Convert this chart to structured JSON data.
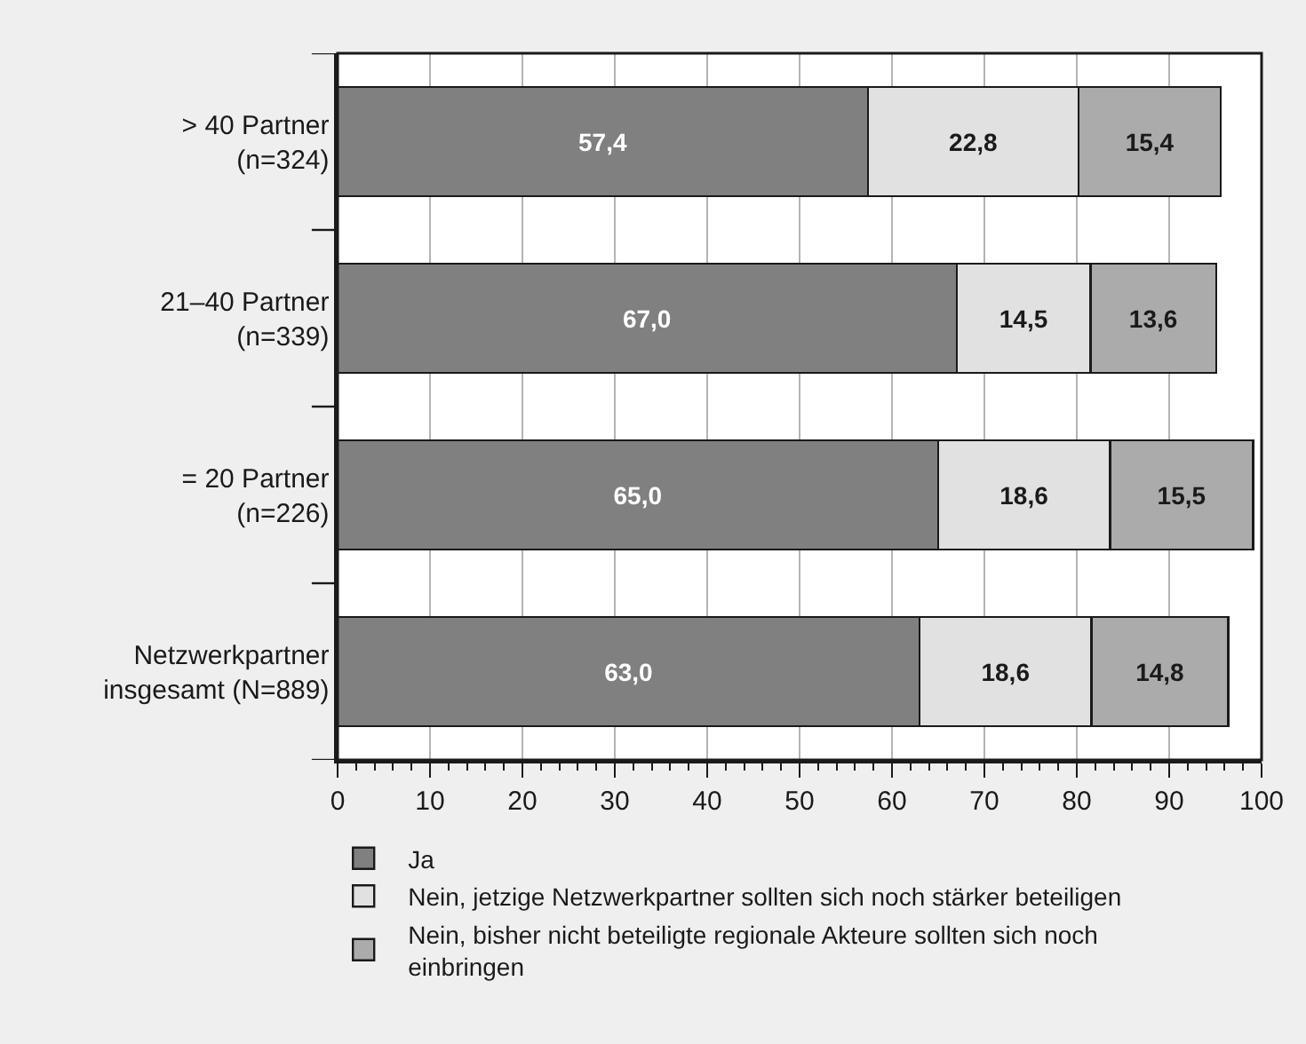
{
  "chart_data": {
    "type": "bar",
    "orientation": "horizontal",
    "stacked": true,
    "categories": [
      "> 40 Partner\n(n=324)",
      "21–40 Partner\n(n=339)",
      "= 20 Partner\n(n=226)",
      "Netzwerkpartner\ninsgesamt (N=889)"
    ],
    "series": [
      {
        "name": "Ja",
        "color": "#808080",
        "values": [
          57.4,
          67.0,
          65.0,
          63.0
        ],
        "value_labels": [
          "57,4",
          "67,0",
          "65,0",
          "63,0"
        ]
      },
      {
        "name": "Nein, jetzige Netzwerkpartner sollten sich noch stärker beteiligen",
        "color": "#e1e1e1",
        "values": [
          22.8,
          14.5,
          18.6,
          18.6
        ],
        "value_labels": [
          "22,8",
          "14,5",
          "18,6",
          "18,6"
        ]
      },
      {
        "name": "Nein, bisher nicht beteiligte regionale Akteure sollten sich noch einbringen",
        "color": "#ababab",
        "values": [
          15.4,
          13.6,
          15.5,
          14.8
        ],
        "value_labels": [
          "15,4",
          "13,6",
          "15,5",
          "14,8"
        ]
      }
    ],
    "xlim": [
      0,
      100
    ],
    "xticks": [
      0,
      10,
      20,
      30,
      40,
      50,
      60,
      70,
      80,
      90,
      100
    ],
    "grid": "x",
    "legend": "bottom left"
  }
}
